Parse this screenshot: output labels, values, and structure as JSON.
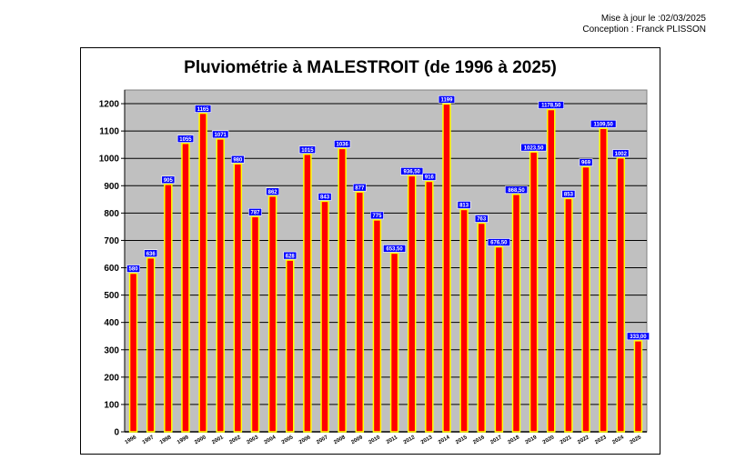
{
  "header": {
    "updated": "Mise à jour le :02/03/2025",
    "author": "Conception : Franck PLISSON"
  },
  "chart_data": {
    "type": "bar",
    "title": "Pluviométrie à MALESTROIT (de 1996 à 2025)",
    "xlabel": "",
    "ylabel": "",
    "ylim": [
      0,
      1250
    ],
    "yticks": [
      0,
      100,
      200,
      300,
      400,
      500,
      600,
      700,
      800,
      900,
      1000,
      1100,
      1200
    ],
    "grid": true,
    "categories": [
      "1996",
      "1997",
      "1998",
      "1999",
      "2000",
      "2001",
      "2002",
      "2003",
      "2004",
      "2005",
      "2006",
      "2007",
      "2008",
      "2009",
      "2010",
      "2011",
      "2012",
      "2013",
      "2014",
      "2015",
      "2016",
      "2017",
      "2018",
      "2019",
      "2020",
      "2021",
      "2022",
      "2023",
      "2024",
      "2025"
    ],
    "values": [
      580,
      636,
      905,
      1055,
      1165,
      1071,
      980,
      787,
      862,
      628,
      1015,
      843,
      1036,
      877,
      775,
      653.5,
      936.5,
      916,
      1199,
      813,
      763,
      676.5,
      868.5,
      1023.5,
      1178.5,
      853,
      969,
      1109.5,
      1002,
      333
    ],
    "value_labels": [
      "580",
      "636",
      "905",
      "1055",
      "1165",
      "1071",
      "980",
      "787",
      "862",
      "628",
      "1015",
      "843",
      "1036",
      "877",
      "775",
      "653,50",
      "936,50",
      "916",
      "1199",
      "813",
      "763",
      "676,50",
      "868,50",
      "1023,50",
      "1178,50",
      "853",
      "969",
      "1109,50",
      "1002",
      "333,00"
    ],
    "colors": {
      "bar_fill": "#ff0000",
      "bar_border": "#ffff00",
      "plot_bg": "#c0c0c0",
      "label_bg": "#0000ff"
    }
  }
}
